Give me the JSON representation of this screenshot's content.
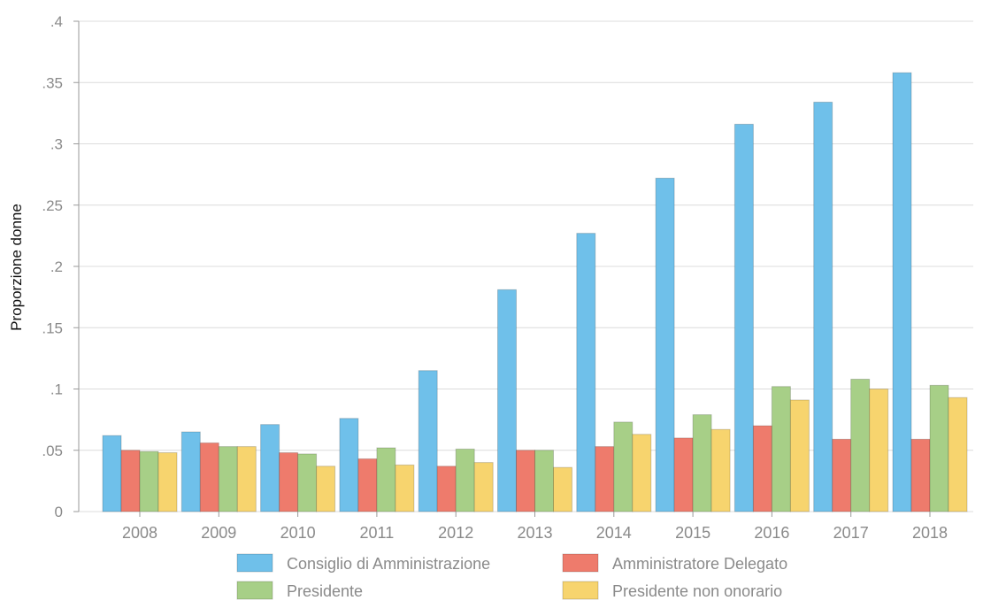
{
  "chart_data": {
    "type": "bar",
    "title": "",
    "xlabel": "",
    "ylabel": "Proporzione donne",
    "categories": [
      "2008",
      "2009",
      "2010",
      "2011",
      "2012",
      "2013",
      "2014",
      "2015",
      "2016",
      "2017",
      "2018"
    ],
    "ylim": [
      0,
      0.4
    ],
    "yticks": [
      0,
      0.05,
      0.1,
      0.15,
      0.2,
      0.25,
      0.3,
      0.35,
      0.4
    ],
    "ytick_labels": [
      "0",
      ".05",
      ".1",
      ".15",
      ".2",
      ".25",
      ".3",
      ".35",
      ".4"
    ],
    "grid": true,
    "legend_position": "bottom",
    "series": [
      {
        "name": "Consiglio di Amministrazione",
        "color": "#6fc0ea",
        "values": [
          0.062,
          0.065,
          0.071,
          0.076,
          0.115,
          0.181,
          0.227,
          0.272,
          0.316,
          0.334,
          0.358
        ]
      },
      {
        "name": "Amministratore Delegato",
        "color": "#ee7b6c",
        "values": [
          0.05,
          0.056,
          0.048,
          0.043,
          0.037,
          0.05,
          0.053,
          0.06,
          0.07,
          0.059,
          0.059
        ]
      },
      {
        "name": "Presidente",
        "color": "#a7cf87",
        "values": [
          0.049,
          0.053,
          0.047,
          0.052,
          0.051,
          0.05,
          0.073,
          0.079,
          0.102,
          0.108,
          0.103
        ]
      },
      {
        "name": "Presidente non onorario",
        "color": "#f7d46e",
        "values": [
          0.048,
          0.053,
          0.037,
          0.038,
          0.04,
          0.036,
          0.063,
          0.067,
          0.091,
          0.1,
          0.093
        ]
      }
    ]
  }
}
